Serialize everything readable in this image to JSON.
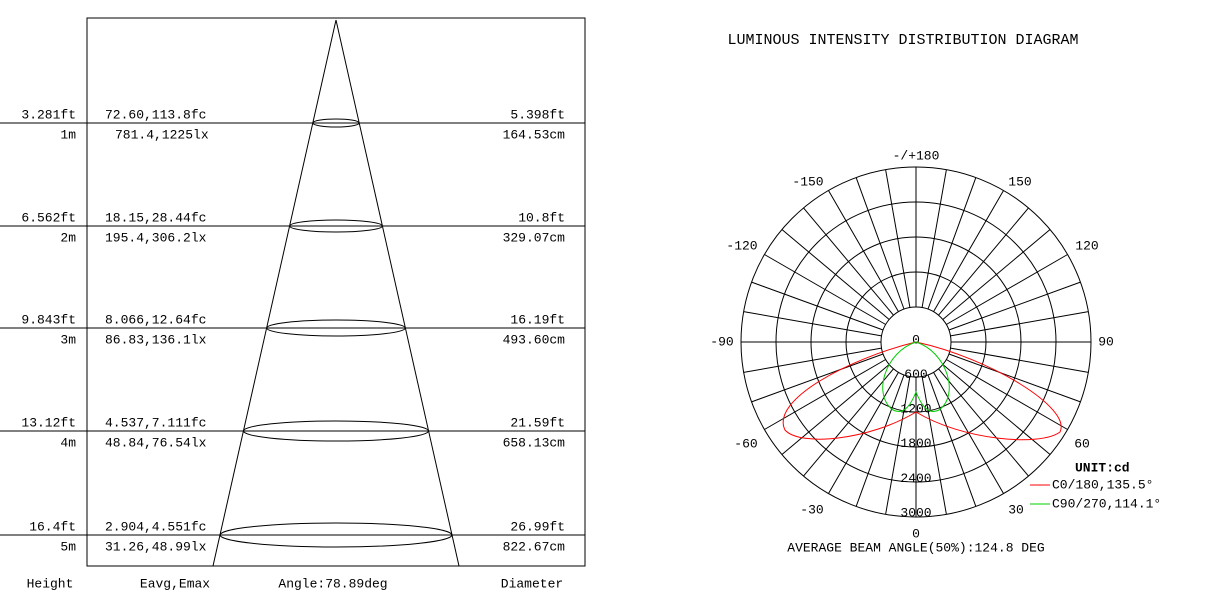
{
  "cone": {
    "rows": [
      {
        "height_ft": "3.281ft",
        "height_m": "1m",
        "fc": "72.60,113.8fc",
        "lx": "781.4,1225lx",
        "dia_ft": "5.398ft",
        "dia_cm": "164.53cm"
      },
      {
        "height_ft": "6.562ft",
        "height_m": "2m",
        "fc": "18.15,28.44fc",
        "lx": "195.4,306.2lx",
        "dia_ft": "10.8ft",
        "dia_cm": "329.07cm"
      },
      {
        "height_ft": "9.843ft",
        "height_m": "3m",
        "fc": "8.066,12.64fc",
        "lx": "86.83,136.1lx",
        "dia_ft": "16.19ft",
        "dia_cm": "493.60cm"
      },
      {
        "height_ft": "13.12ft",
        "height_m": "4m",
        "fc": "4.537,7.111fc",
        "lx": "48.84,76.54lx",
        "dia_ft": "21.59ft",
        "dia_cm": "658.13cm"
      },
      {
        "height_ft": "16.4ft",
        "height_m": "5m",
        "fc": "2.904,4.551fc",
        "lx": "31.26,48.99lx",
        "dia_ft": "26.99ft",
        "dia_cm": "822.67cm"
      }
    ],
    "footer": {
      "height": "Height",
      "eavg": "Eavg,Emax",
      "angle": "Angle:78.89deg",
      "diameter": "Diameter"
    }
  },
  "polar": {
    "title": "LUMINOUS INTENSITY DISTRIBUTION DIAGRAM",
    "angle_labels": [
      "-/+180",
      "-150",
      "150",
      "-120",
      "120",
      "-90",
      "90",
      "-60",
      "60",
      "-30",
      "30",
      "0"
    ],
    "radial_labels": [
      "0",
      "600",
      "1200",
      "1800",
      "2400",
      "3000"
    ],
    "unit": "UNIT:cd",
    "legend": [
      {
        "label": "C0/180,135.5°",
        "color": "#ff0000"
      },
      {
        "label": "C90/270,114.1°",
        "color": "#00cc00"
      }
    ],
    "beam_angle": "AVERAGE BEAM ANGLE(50%):124.8 DEG"
  }
}
